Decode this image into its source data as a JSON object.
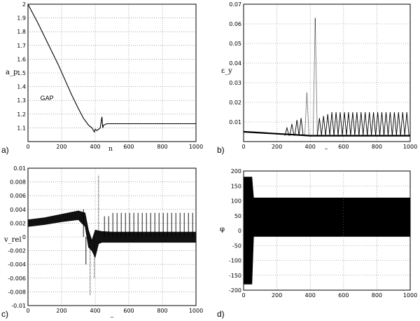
{
  "chart_data": [
    {
      "type": "line",
      "panel_label": "a)",
      "ylabel": "a_p",
      "xlabel": "n",
      "xlim": [
        0,
        1000
      ],
      "ylim": [
        1.0,
        2.0
      ],
      "xticks": [
        0,
        200,
        400,
        600,
        800,
        1000
      ],
      "yticks": [
        1.1,
        1.2,
        1.3,
        1.4,
        1.5,
        1.6,
        1.7,
        1.8,
        1.9,
        2.0
      ],
      "ytick_labels": [
        "1.1",
        "1.2",
        "1.3",
        "1.4",
        "1.5",
        "1.6",
        "1.7",
        "1.8",
        "1.9",
        "2"
      ],
      "grid": "dotted",
      "annotations": [
        {
          "text": "GAP",
          "x": 240,
          "y": 1.28
        }
      ],
      "series": [
        {
          "x": [
            0,
            30,
            60,
            100,
            140,
            180,
            220,
            260,
            300,
            330,
            360,
            380,
            395,
            400,
            410,
            420,
            430,
            440,
            445,
            450,
            470,
            500,
            600,
            700,
            800,
            900,
            1000
          ],
          "values": [
            2.0,
            1.93,
            1.86,
            1.76,
            1.66,
            1.56,
            1.45,
            1.34,
            1.24,
            1.17,
            1.12,
            1.1,
            1.07,
            1.09,
            1.08,
            1.09,
            1.1,
            1.18,
            1.1,
            1.12,
            1.13,
            1.13,
            1.13,
            1.13,
            1.13,
            1.13,
            1.13
          ]
        }
      ]
    },
    {
      "type": "line",
      "panel_label": "b)",
      "ylabel": "ε_y",
      "xlabel": "–",
      "xlim": [
        0,
        1000
      ],
      "ylim": [
        0,
        0.07
      ],
      "xticks": [
        0,
        200,
        400,
        600,
        800,
        1000
      ],
      "yticks": [
        0.01,
        0.02,
        0.03,
        0.04,
        0.05,
        0.06,
        0.07
      ],
      "ytick_labels": [
        "0.01",
        "0.02",
        "0.03",
        "0.04",
        "0.05",
        "0.06",
        "0.07"
      ],
      "grid": "dotted",
      "series": [
        {
          "baseline": [
            [
              0,
              0.005
            ],
            [
              100,
              0.0045
            ],
            [
              200,
              0.004
            ],
            [
              300,
              0.0035
            ],
            [
              400,
              0.003
            ],
            [
              1000,
              0.003
            ]
          ],
          "spikes": [
            [
              260,
              0.007
            ],
            [
              290,
              0.009
            ],
            [
              320,
              0.011
            ],
            [
              345,
              0.012
            ],
            [
              380,
              0.025
            ],
            [
              430,
              0.063
            ],
            [
              455,
              0.012
            ],
            [
              480,
              0.013
            ],
            [
              505,
              0.014
            ],
            [
              530,
              0.015
            ],
            [
              555,
              0.015
            ],
            [
              580,
              0.015
            ],
            [
              605,
              0.015
            ],
            [
              630,
              0.015
            ],
            [
              655,
              0.015
            ],
            [
              680,
              0.015
            ],
            [
              705,
              0.015
            ],
            [
              730,
              0.015
            ],
            [
              755,
              0.015
            ],
            [
              780,
              0.015
            ],
            [
              805,
              0.015
            ],
            [
              830,
              0.015
            ],
            [
              855,
              0.015
            ],
            [
              880,
              0.015
            ],
            [
              905,
              0.015
            ],
            [
              930,
              0.015
            ],
            [
              955,
              0.015
            ],
            [
              980,
              0.015
            ]
          ]
        }
      ]
    },
    {
      "type": "line",
      "panel_label": "c)",
      "ylabel": "v_rel",
      "xlabel": "–",
      "xlim": [
        0,
        1000
      ],
      "ylim": [
        -0.01,
        0.01
      ],
      "xticks": [
        0,
        200,
        400,
        600,
        800,
        1000
      ],
      "yticks": [
        -0.01,
        -0.008,
        -0.006,
        -0.004,
        -0.002,
        0,
        0.002,
        0.004,
        0.006,
        0.008,
        0.01
      ],
      "ytick_labels": [
        "-0.01",
        "-0.008",
        "-0.006",
        "-0.004",
        "-0.002",
        "0",
        "0.002",
        "0.004",
        "0.006",
        "0.008",
        "0.01"
      ],
      "grid": "dotted",
      "series": [
        {
          "envelope_upper": [
            [
              0,
              0.0025
            ],
            [
              100,
              0.0028
            ],
            [
              200,
              0.0033
            ],
            [
              300,
              0.0038
            ],
            [
              340,
              0.0035
            ],
            [
              360,
              0.001
            ],
            [
              380,
              -0.0005
            ],
            [
              400,
              0.001
            ],
            [
              440,
              0.0008
            ],
            [
              500,
              0.0007
            ],
            [
              1000,
              0.0007
            ]
          ],
          "envelope_lower": [
            [
              0,
              0.0015
            ],
            [
              100,
              0.0018
            ],
            [
              200,
              0.0022
            ],
            [
              300,
              0.0025
            ],
            [
              340,
              0.0015
            ],
            [
              360,
              -0.0015
            ],
            [
              380,
              -0.002
            ],
            [
              400,
              -0.003
            ],
            [
              420,
              -0.001
            ],
            [
              440,
              -0.0008
            ],
            [
              500,
              -0.0008
            ],
            [
              1000,
              -0.0008
            ]
          ],
          "spikes": [
            [
              330,
              0.004
            ],
            [
              345,
              -0.004
            ],
            [
              370,
              -0.0085
            ],
            [
              395,
              -0.006
            ],
            [
              420,
              0.009
            ],
            [
              455,
              0.003
            ],
            [
              480,
              0.003
            ],
            [
              505,
              0.0035
            ],
            [
              530,
              0.0035
            ],
            [
              555,
              0.0035
            ],
            [
              580,
              0.0035
            ],
            [
              605,
              0.0035
            ],
            [
              630,
              0.0035
            ],
            [
              655,
              0.0035
            ],
            [
              680,
              0.0035
            ],
            [
              705,
              0.0035
            ],
            [
              730,
              0.0035
            ],
            [
              755,
              0.0035
            ],
            [
              780,
              0.0035
            ],
            [
              805,
              0.0035
            ],
            [
              830,
              0.0035
            ],
            [
              855,
              0.0035
            ],
            [
              880,
              0.0035
            ],
            [
              905,
              0.0035
            ],
            [
              930,
              0.0035
            ],
            [
              955,
              0.0035
            ],
            [
              980,
              0.0035
            ]
          ]
        }
      ]
    },
    {
      "type": "area",
      "panel_label": "d)",
      "ylabel": "φ",
      "xlabel": "",
      "xlim": [
        0,
        1000
      ],
      "ylim": [
        -200,
        200
      ],
      "xticks": [
        0,
        200,
        400,
        600,
        800,
        1000
      ],
      "yticks": [
        -200,
        -150,
        -100,
        -50,
        0,
        50,
        100,
        150,
        200
      ],
      "ytick_labels": [
        "-200",
        "-150",
        "-100",
        "-50",
        "0",
        "50",
        "100",
        "150",
        "200"
      ],
      "grid": "dotted",
      "series": [
        {
          "band_upper": [
            [
              0,
              180
            ],
            [
              50,
              180
            ],
            [
              60,
              110
            ],
            [
              1000,
              110
            ]
          ],
          "band_lower": [
            [
              0,
              -180
            ],
            [
              50,
              -180
            ],
            [
              60,
              -20
            ],
            [
              1000,
              -20
            ]
          ]
        }
      ]
    }
  ]
}
